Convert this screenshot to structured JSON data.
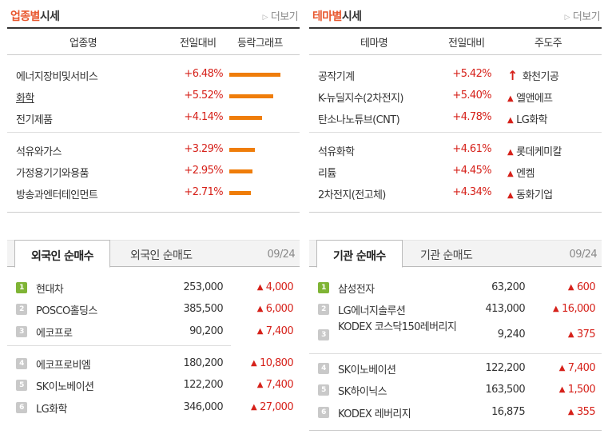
{
  "industry": {
    "title_accent": "업종별",
    "title_rest": "시세",
    "more_label": "더보기",
    "columns": [
      "업종명",
      "전일대비",
      "등락그래프"
    ],
    "rows": [
      {
        "name": "에너지장비및서비스",
        "change": "+6.48%",
        "bar_pct": 6.48
      },
      {
        "name": "화학",
        "change": "+5.52%",
        "bar_pct": 5.52
      },
      {
        "name": "전기제품",
        "change": "+4.14%",
        "bar_pct": 4.14
      },
      {
        "name": "석유와가스",
        "change": "+3.29%",
        "bar_pct": 3.29
      },
      {
        "name": "가정용기기와용품",
        "change": "+2.95%",
        "bar_pct": 2.95
      },
      {
        "name": "방송과엔터테인먼트",
        "change": "+2.71%",
        "bar_pct": 2.71
      }
    ]
  },
  "theme": {
    "title_accent": "테마별",
    "title_rest": "시세",
    "more_label": "더보기",
    "columns": [
      "테마명",
      "전일대비",
      "주도주"
    ],
    "rows": [
      {
        "name": "공작기계",
        "change": "+5.42%",
        "lead": "화천기공",
        "lead_icon": "up-arrow-icon"
      },
      {
        "name": "K-뉴딜지수(2차전지)",
        "change": "+5.40%",
        "lead": "엘앤에프",
        "lead_icon": "up-triangle-icon"
      },
      {
        "name": "탄소나노튜브(CNT)",
        "change": "+4.78%",
        "lead": "LG화학",
        "lead_icon": "up-triangle-icon"
      },
      {
        "name": "석유화학",
        "change": "+4.61%",
        "lead": "롯데케미칼",
        "lead_icon": "up-triangle-icon"
      },
      {
        "name": "리튬",
        "change": "+4.45%",
        "lead": "엔켐",
        "lead_icon": "up-triangle-icon"
      },
      {
        "name": "2차전지(전고체)",
        "change": "+4.34%",
        "lead": "동화기업",
        "lead_icon": "up-triangle-icon"
      }
    ]
  },
  "foreign": {
    "tab_active": "외국인 순매수",
    "tab_other": "외국인 순매도",
    "date": "09/24",
    "rows": [
      {
        "rank": "1",
        "name": "현대차",
        "price": "253,000",
        "diff": "4,000"
      },
      {
        "rank": "2",
        "name": "POSCO홀딩스",
        "price": "385,500",
        "diff": "6,000"
      },
      {
        "rank": "3",
        "name": "에코프로",
        "price": "90,200",
        "diff": "7,400"
      },
      {
        "rank": "4",
        "name": "에코프로비엠",
        "price": "180,200",
        "diff": "10,800"
      },
      {
        "rank": "5",
        "name": "SK이노베이션",
        "price": "122,200",
        "diff": "7,400"
      },
      {
        "rank": "6",
        "name": "LG화학",
        "price": "346,000",
        "diff": "27,000"
      }
    ]
  },
  "institution": {
    "tab_active": "기관 순매수",
    "tab_other": "기관 순매도",
    "date": "09/24",
    "rows": [
      {
        "rank": "1",
        "name": "삼성전자",
        "price": "63,200",
        "diff": "600"
      },
      {
        "rank": "2",
        "name": "LG에너지솔루션",
        "price": "413,000",
        "diff": "16,000"
      },
      {
        "rank": "3",
        "name": "KODEX 코스닥150레버리지",
        "price": "9,240",
        "diff": "375"
      },
      {
        "rank": "4",
        "name": "SK이노베이션",
        "price": "122,200",
        "diff": "7,400"
      },
      {
        "rank": "5",
        "name": "SK하이닉스",
        "price": "163,500",
        "diff": "1,500"
      },
      {
        "rank": "6",
        "name": "KODEX 레버리지",
        "price": "16,875",
        "diff": "355"
      }
    ]
  },
  "colors": {
    "accent": "#e8572e",
    "up": "#d6211a",
    "bar": "#ef7d0a",
    "rank_first": "#7fb435"
  }
}
